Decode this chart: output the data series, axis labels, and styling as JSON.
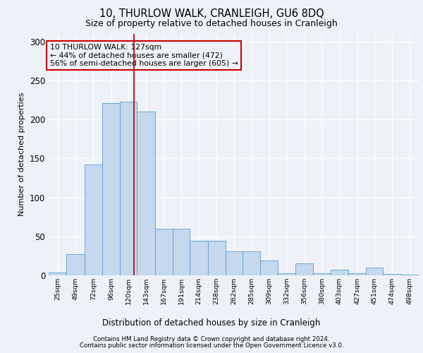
{
  "title1": "10, THURLOW WALK, CRANLEIGH, GU6 8DQ",
  "title2": "Size of property relative to detached houses in Cranleigh",
  "xlabel": "Distribution of detached houses by size in Cranleigh",
  "ylabel": "Number of detached properties",
  "footnote1": "Contains HM Land Registry data © Crown copyright and database right 2024.",
  "footnote2": "Contains public sector information licensed under the Open Government Licence v3.0.",
  "annotation_line1": "10 THURLOW WALK: 127sqm",
  "annotation_line2": "← 44% of detached houses are smaller (472)",
  "annotation_line3": "56% of semi-detached houses are larger (605) →",
  "bin_labels": [
    "25sqm",
    "49sqm",
    "72sqm",
    "96sqm",
    "120sqm",
    "143sqm",
    "167sqm",
    "191sqm",
    "214sqm",
    "238sqm",
    "262sqm",
    "285sqm",
    "309sqm",
    "332sqm",
    "356sqm",
    "380sqm",
    "403sqm",
    "427sqm",
    "451sqm",
    "474sqm",
    "498sqm"
  ],
  "bin_edges": [
    12.5,
    36.5,
    60.5,
    84.5,
    108.5,
    131.5,
    155.5,
    179.5,
    202.5,
    226.5,
    250.5,
    273.5,
    297.5,
    320.5,
    344.5,
    368.5,
    391.5,
    415.5,
    439.5,
    462.5,
    486.5,
    510.5
  ],
  "bar_heights": [
    4,
    27,
    142,
    221,
    223,
    210,
    60,
    60,
    44,
    44,
    31,
    31,
    19,
    3,
    15,
    3,
    7,
    3,
    10,
    2,
    1
  ],
  "bar_color": "#c5d8ed",
  "bar_edge_color": "#5a9fd4",
  "vline_x": 127,
  "vline_color": "#cc0000",
  "ylim": [
    0,
    310
  ],
  "yticks": [
    0,
    50,
    100,
    150,
    200,
    250,
    300
  ],
  "bg_color": "#eef2f8",
  "grid_color": "#ffffff",
  "box_color": "#cc0000"
}
